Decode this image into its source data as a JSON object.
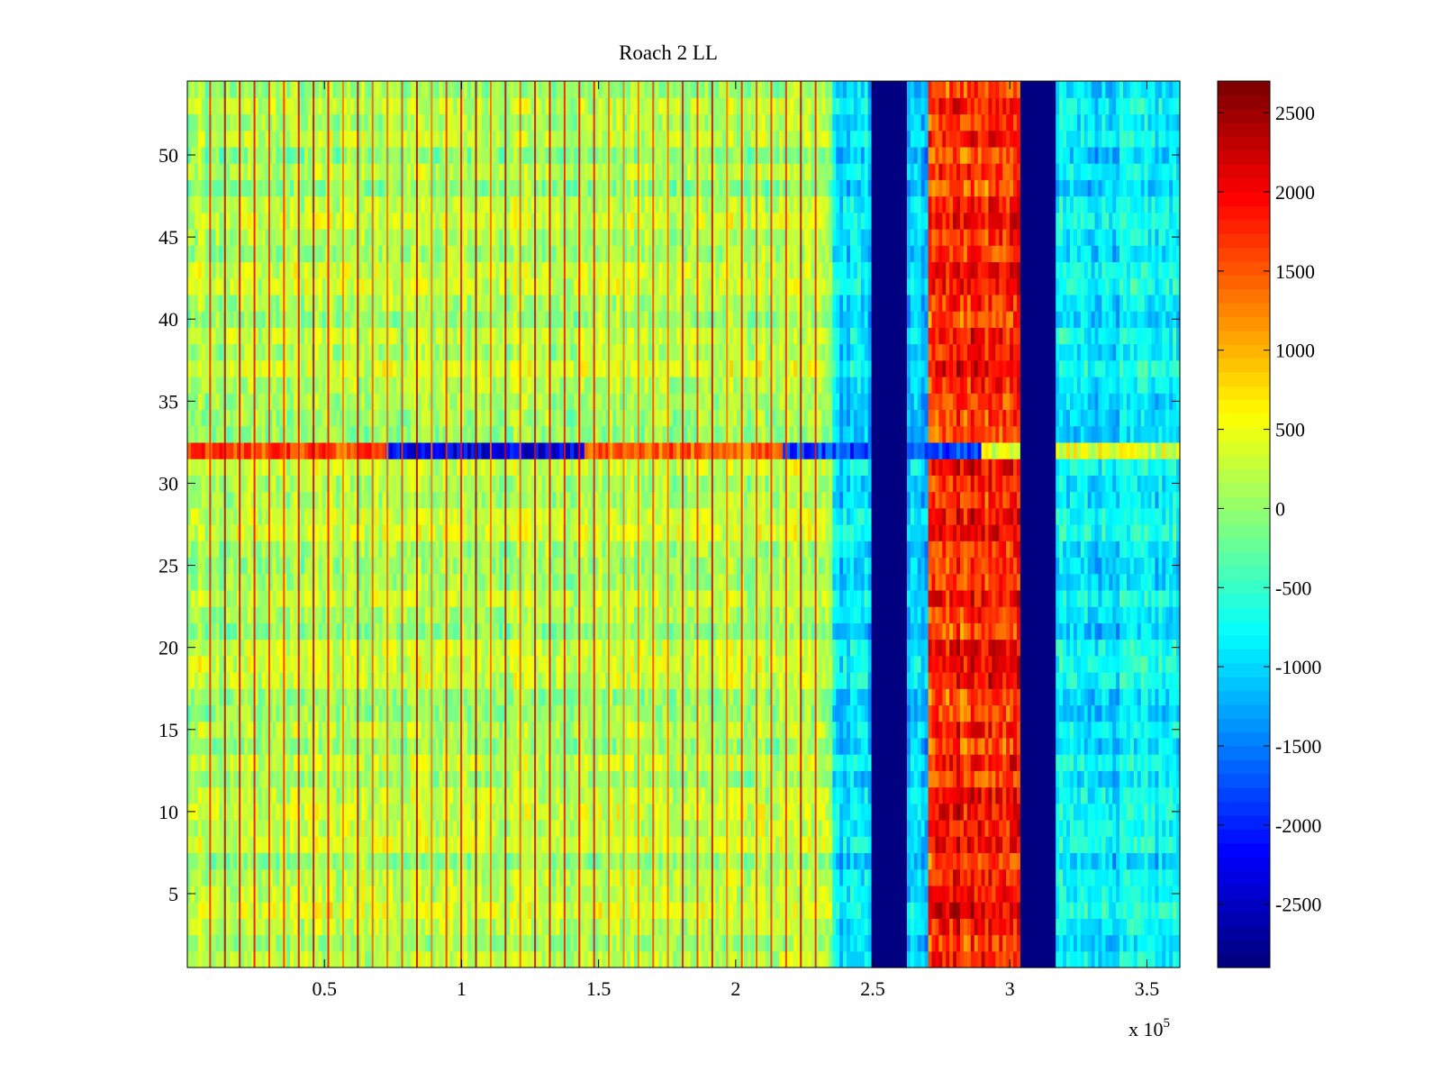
{
  "chart_data": {
    "type": "heatmap",
    "title": "Roach 2 LL",
    "xlabel": "",
    "ylabel": "",
    "x_range": [
      0,
      362000
    ],
    "y_range": [
      0.5,
      54.5
    ],
    "x_ticks": [
      50000,
      100000,
      150000,
      200000,
      250000,
      300000,
      350000
    ],
    "x_tick_labels": [
      "0.5",
      "1",
      "1.5",
      "2",
      "2.5",
      "3",
      "3.5"
    ],
    "x_exponent_label": {
      "base": "x 10",
      "power": "5"
    },
    "y_ticks": [
      5,
      10,
      15,
      20,
      25,
      30,
      35,
      40,
      45,
      50
    ],
    "y_tick_labels": [
      "5",
      "10",
      "15",
      "20",
      "25",
      "30",
      "35",
      "40",
      "45",
      "50"
    ],
    "rows": 54,
    "colormap": "jet",
    "colorbar": {
      "range": [
        -2900,
        2700
      ],
      "ticks": [
        2500,
        2000,
        1500,
        1000,
        500,
        0,
        -500,
        -1000,
        -1500,
        -2000,
        -2500
      ],
      "tick_labels": [
        "2500",
        "2000",
        "1500",
        "1000",
        "500",
        "0",
        "-500",
        "-1000",
        "-1500",
        "-2000",
        "-2500"
      ]
    },
    "column_regions": [
      {
        "x_start": 0,
        "x_end": 235000,
        "typical_value": 150
      },
      {
        "x_start": 235000,
        "x_end": 250000,
        "typical_value": -1000
      },
      {
        "x_start": 250000,
        "x_end": 262000,
        "typical_value": -2900
      },
      {
        "x_start": 262000,
        "x_end": 270000,
        "typical_value": -1100
      },
      {
        "x_start": 270000,
        "x_end": 304000,
        "typical_value": 1800
      },
      {
        "x_start": 304000,
        "x_end": 317000,
        "typical_value": -2900
      },
      {
        "x_start": 317000,
        "x_end": 362000,
        "typical_value": -900
      }
    ],
    "anomalous_row": {
      "row": 32,
      "description_values": [
        1600,
        -2300,
        1500,
        -1800,
        400
      ]
    },
    "grid": false,
    "legend": "none"
  }
}
